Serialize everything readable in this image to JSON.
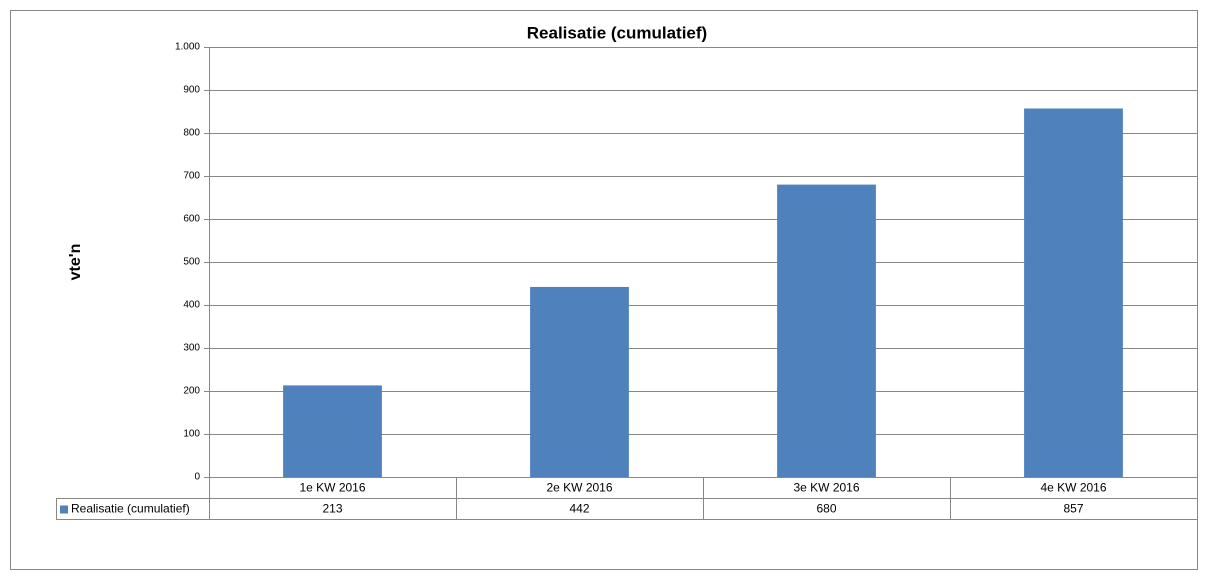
{
  "chart_data": {
    "type": "bar",
    "title": "Realisatie (cumulatief)",
    "y_label": "vte'n",
    "categories": [
      "1e KW 2016",
      "2e KW 2016",
      "3e KW 2016",
      "4e KW 2016"
    ],
    "series": [
      {
        "name": "Realisatie (cumulatief)",
        "color": "#4f81bd",
        "values": [
          213,
          442,
          680,
          857
        ]
      }
    ],
    "ylim": [
      0,
      1000
    ],
    "yticks": [
      0,
      100,
      200,
      300,
      400,
      500,
      600,
      700,
      800,
      900,
      {
        "value": 1000,
        "label": "1.000"
      }
    ],
    "grid": true,
    "data_table": true
  }
}
